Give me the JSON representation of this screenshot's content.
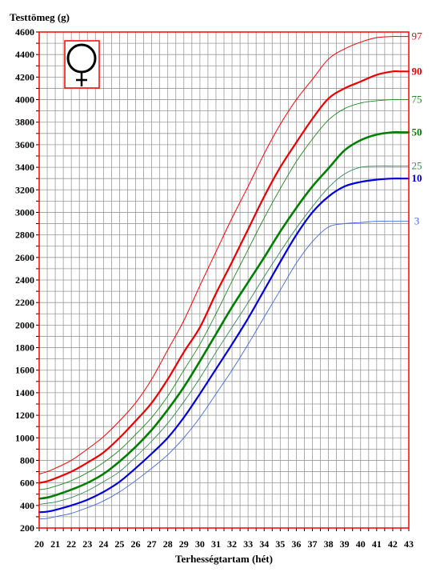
{
  "chart_data": {
    "type": "line",
    "ylabel": "Testtömeg (g)",
    "xlabel": "Terhességtartam (hét)",
    "xlim": [
      20,
      43
    ],
    "ylim": [
      200,
      4600
    ],
    "x_ticks": [
      "20",
      "21",
      "22",
      "23",
      "24",
      "25",
      "26",
      "27",
      "28",
      "29",
      "30",
      "31",
      "32",
      "33",
      "34",
      "35",
      "36",
      "37",
      "38",
      "39",
      "40",
      "41",
      "42",
      "43"
    ],
    "y_ticks": [
      "200",
      "400",
      "600",
      "800",
      "1000",
      "1200",
      "1400",
      "1600",
      "1800",
      "2000",
      "2200",
      "2400",
      "2600",
      "2800",
      "3000",
      "3200",
      "3400",
      "3600",
      "3800",
      "4000",
      "4200",
      "4400",
      "4600"
    ],
    "grid": true,
    "symbol": "female-symbol",
    "x": [
      20,
      20.5,
      21,
      22,
      23,
      24,
      25,
      26,
      27,
      28,
      29,
      30,
      31,
      32,
      33,
      34,
      35,
      36,
      37,
      38,
      39,
      40,
      41,
      42,
      42.5,
      43
    ],
    "series": [
      {
        "name": "97",
        "color": "#ff0000",
        "width": 1.0,
        "label_bold": false,
        "values": [
          680,
          700,
          730,
          800,
          900,
          1010,
          1150,
          1310,
          1520,
          1780,
          2040,
          2350,
          2650,
          2950,
          3230,
          3520,
          3780,
          4000,
          4180,
          4360,
          4450,
          4510,
          4550,
          4560,
          4560,
          4560
        ]
      },
      {
        "name": "90",
        "color": "#ee0000",
        "width": 2.2,
        "label_bold": true,
        "values": [
          600,
          615,
          640,
          700,
          780,
          870,
          1000,
          1150,
          1310,
          1520,
          1760,
          1980,
          2280,
          2560,
          2850,
          3140,
          3400,
          3620,
          3830,
          4010,
          4100,
          4160,
          4220,
          4250,
          4250,
          4250
        ]
      },
      {
        "name": "75",
        "color": "#228b22",
        "width": 0.9,
        "label_bold": false,
        "values": [
          540,
          550,
          570,
          620,
          690,
          780,
          890,
          1030,
          1180,
          1370,
          1600,
          1830,
          2100,
          2390,
          2670,
          2950,
          3210,
          3450,
          3650,
          3820,
          3920,
          3970,
          3990,
          4000,
          4000,
          4000
        ]
      },
      {
        "name": "50",
        "color": "#008000",
        "width": 2.6,
        "label_bold": true,
        "values": [
          460,
          470,
          490,
          540,
          600,
          680,
          790,
          920,
          1070,
          1250,
          1450,
          1680,
          1920,
          2160,
          2380,
          2600,
          2830,
          3040,
          3230,
          3390,
          3550,
          3640,
          3690,
          3710,
          3710,
          3710
        ]
      },
      {
        "name": "25",
        "color": "#2e8b57",
        "width": 0.9,
        "label_bold": false,
        "values": [
          410,
          420,
          430,
          470,
          530,
          610,
          700,
          830,
          970,
          1130,
          1320,
          1530,
          1760,
          1980,
          2200,
          2430,
          2650,
          2860,
          3050,
          3220,
          3340,
          3400,
          3410,
          3410,
          3410,
          3410
        ]
      },
      {
        "name": "10",
        "color": "#0000dd",
        "width": 2.2,
        "label_bold": true,
        "values": [
          340,
          345,
          360,
          400,
          450,
          520,
          610,
          730,
          860,
          1000,
          1180,
          1390,
          1610,
          1830,
          2060,
          2310,
          2560,
          2800,
          3000,
          3140,
          3230,
          3270,
          3290,
          3300,
          3300,
          3300
        ]
      },
      {
        "name": "3",
        "color": "#4169e1",
        "width": 0.9,
        "label_bold": false,
        "values": [
          280,
          285,
          300,
          330,
          380,
          440,
          520,
          620,
          730,
          850,
          1000,
          1180,
          1390,
          1600,
          1830,
          2070,
          2310,
          2550,
          2740,
          2870,
          2900,
          2910,
          2920,
          2920,
          2920,
          2920
        ]
      }
    ]
  }
}
